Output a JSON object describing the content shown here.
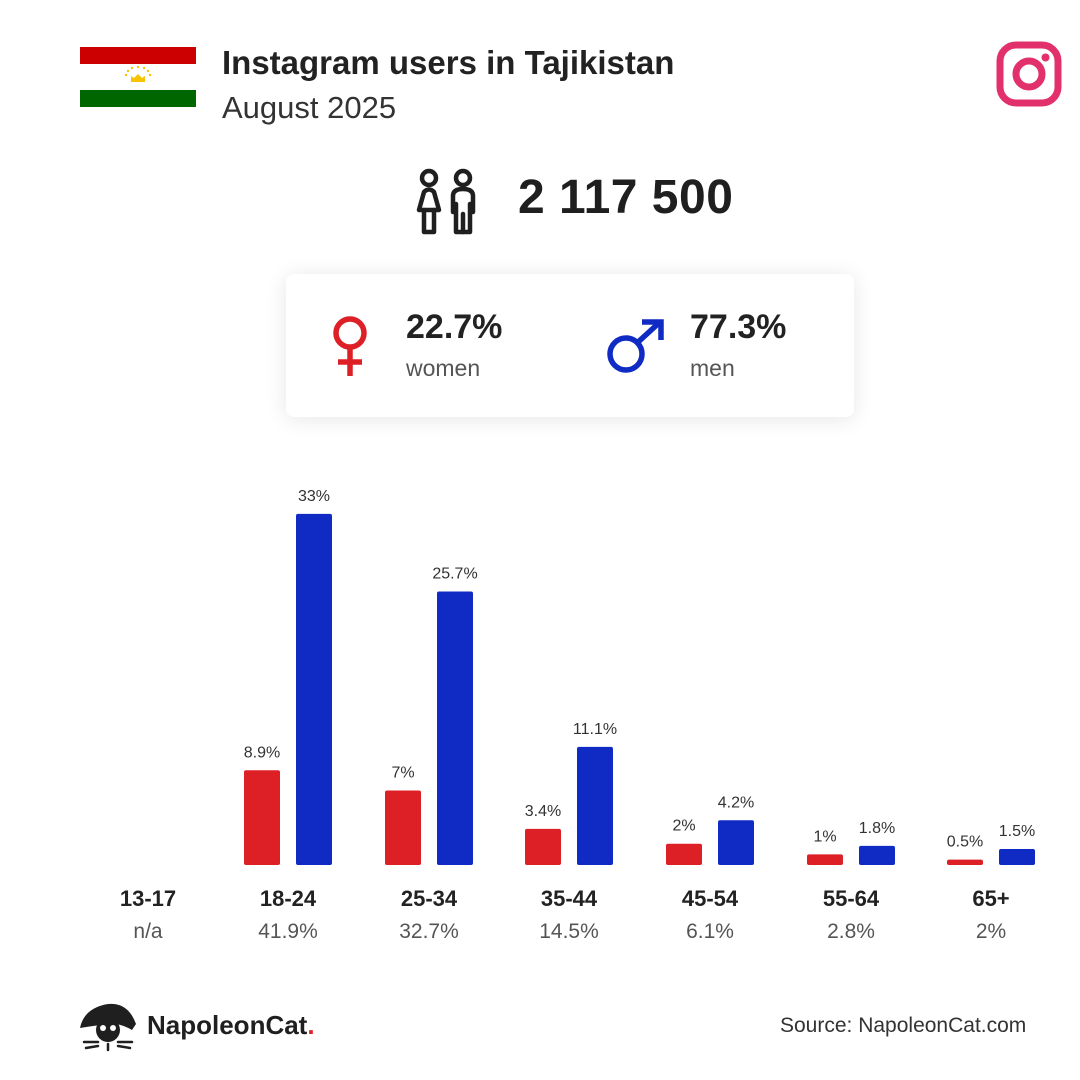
{
  "header": {
    "title": "Instagram users in Tajikistan",
    "subtitle": "August 2025"
  },
  "total_users": "2 117 500",
  "gender": {
    "women_pct": "22.7%",
    "women_label": "women",
    "men_pct": "77.3%",
    "men_label": "men"
  },
  "colors": {
    "women": "#dd1f26",
    "men": "#0f2bc4",
    "instagram": "#e1306c",
    "flag_red": "#cc0000",
    "flag_green": "#006600",
    "crown": "#f8c300"
  },
  "icons": [
    "tajikistan-flag",
    "instagram-icon",
    "people-icon",
    "female-symbol-icon",
    "male-symbol-icon",
    "napoleoncat-logo-icon"
  ],
  "chart_data": {
    "type": "bar",
    "categories": [
      "13-17",
      "18-24",
      "25-34",
      "35-44",
      "45-54",
      "55-64",
      "65+"
    ],
    "category_totals": [
      "n/a",
      "41.9%",
      "32.7%",
      "14.5%",
      "6.1%",
      "2.8%",
      "2%"
    ],
    "series": [
      {
        "values": [
          null,
          8.9,
          7,
          3.4,
          2,
          1,
          0.5
        ],
        "labels": [
          "",
          "8.9%",
          "7%",
          "3.4%",
          "2%",
          "1%",
          "0.5%"
        ]
      },
      {
        "values": [
          null,
          33,
          25.7,
          11.1,
          4.2,
          1.8,
          1.5
        ],
        "labels": [
          "",
          "33%",
          "25.7%",
          "11.1%",
          "4.2%",
          "1.8%",
          "1.5%"
        ]
      }
    ]
  },
  "footer": {
    "brand_name": "NapoleonCat",
    "brand_dot": ".",
    "source": "Source: NapoleonCat.com"
  }
}
